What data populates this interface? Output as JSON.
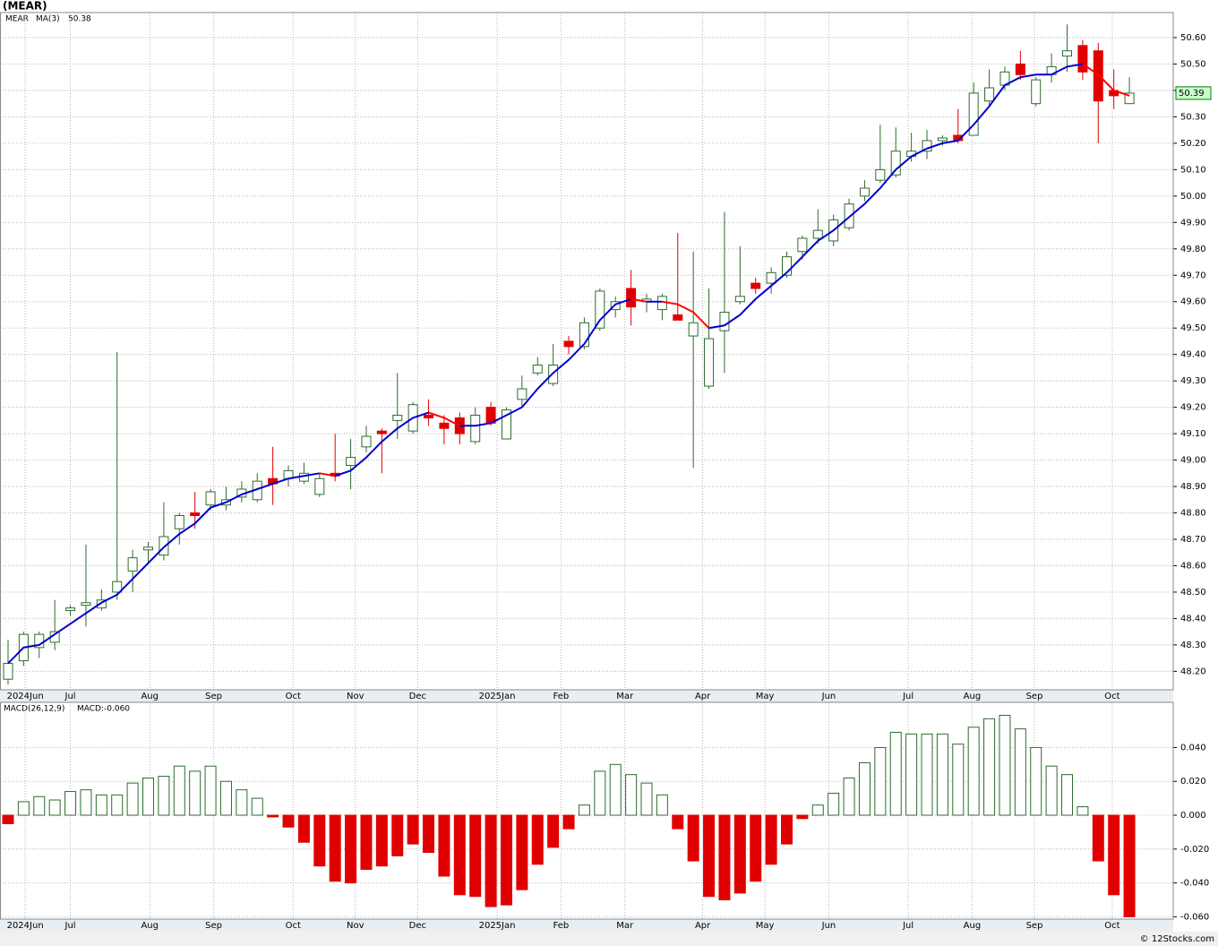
{
  "chart_data": [
    {
      "type": "candlestick",
      "title": "(MEAR)",
      "name": "MEAR",
      "name_color": "#008000",
      "categories": [
        null,
        null,
        null,
        null,
        null,
        null,
        null,
        null,
        null,
        null,
        null,
        null,
        null,
        null,
        null,
        null,
        null,
        null,
        null,
        null,
        null,
        null,
        null,
        null,
        null,
        null,
        null,
        null,
        null,
        null,
        null,
        null,
        null,
        null,
        null,
        null,
        null,
        null,
        null,
        null,
        null,
        null,
        null,
        null,
        null,
        null,
        null,
        null,
        null,
        null,
        null,
        null,
        null,
        null,
        null,
        null,
        null,
        null,
        null,
        null,
        null,
        null,
        null,
        null,
        null,
        null,
        null,
        null,
        null,
        null,
        null,
        null,
        null
      ],
      "open": [
        48.17,
        48.24,
        48.29,
        48.31,
        48.43,
        48.45,
        48.44,
        48.5,
        48.58,
        48.66,
        48.64,
        48.74,
        48.8,
        48.83,
        48.83,
        48.86,
        48.85,
        48.93,
        48.93,
        48.92,
        48.87,
        48.95,
        48.98,
        49.05,
        49.11,
        49.15,
        49.11,
        49.17,
        49.14,
        49.16,
        49.07,
        49.2,
        49.08,
        49.23,
        49.33,
        49.29,
        49.45,
        49.43,
        49.5,
        49.57,
        49.65,
        49.6,
        49.57,
        49.55,
        49.47,
        49.28,
        49.49,
        49.6,
        49.67,
        49.67,
        49.7,
        49.79,
        49.84,
        49.83,
        49.88,
        50.0,
        50.06,
        50.08,
        50.15,
        50.17,
        50.21,
        50.23,
        50.23,
        50.36,
        50.42,
        50.5,
        50.35,
        50.46,
        50.53,
        50.57,
        50.55,
        50.4,
        50.35
      ],
      "high": [
        48.32,
        48.35,
        48.35,
        48.47,
        48.45,
        48.68,
        48.51,
        49.41,
        48.66,
        48.69,
        48.84,
        48.8,
        48.88,
        48.89,
        48.9,
        48.92,
        48.95,
        49.05,
        48.98,
        48.99,
        48.95,
        49.1,
        49.08,
        49.13,
        49.12,
        49.33,
        49.22,
        49.23,
        49.17,
        49.18,
        49.2,
        49.22,
        49.2,
        49.32,
        49.39,
        49.44,
        49.47,
        49.54,
        49.65,
        49.62,
        49.72,
        49.63,
        49.63,
        49.86,
        49.79,
        49.65,
        49.94,
        49.81,
        49.69,
        49.73,
        49.79,
        49.85,
        49.95,
        49.93,
        49.99,
        50.06,
        50.27,
        50.26,
        50.24,
        50.25,
        50.23,
        50.33,
        50.43,
        50.48,
        50.49,
        50.55,
        50.45,
        50.54,
        50.65,
        50.59,
        50.58,
        50.48,
        50.45
      ],
      "low": [
        48.15,
        48.22,
        48.25,
        48.28,
        48.41,
        48.37,
        48.43,
        48.47,
        48.5,
        48.61,
        48.62,
        48.68,
        48.74,
        48.81,
        48.81,
        48.84,
        48.84,
        48.83,
        48.9,
        48.91,
        48.86,
        48.92,
        48.89,
        49.03,
        48.95,
        49.08,
        49.1,
        49.13,
        49.06,
        49.06,
        49.06,
        49.13,
        49.08,
        49.2,
        49.32,
        49.28,
        49.4,
        49.42,
        49.49,
        49.54,
        49.51,
        49.56,
        49.53,
        49.53,
        48.97,
        49.27,
        49.33,
        49.59,
        49.63,
        49.63,
        49.69,
        49.76,
        49.82,
        49.81,
        49.87,
        49.98,
        50.05,
        50.07,
        50.13,
        50.14,
        50.19,
        50.2,
        50.23,
        50.34,
        50.4,
        50.44,
        50.34,
        50.43,
        50.47,
        50.44,
        50.2,
        50.33,
        50.35
      ],
      "close": [
        48.23,
        48.34,
        48.34,
        48.35,
        48.44,
        48.46,
        48.47,
        48.54,
        48.63,
        48.67,
        48.71,
        48.79,
        48.79,
        48.88,
        48.85,
        48.89,
        48.92,
        48.91,
        48.96,
        48.95,
        48.93,
        48.94,
        49.01,
        49.09,
        49.1,
        49.17,
        49.21,
        49.16,
        49.12,
        49.1,
        49.17,
        49.14,
        49.19,
        49.27,
        49.36,
        49.36,
        49.43,
        49.52,
        49.64,
        49.6,
        49.58,
        49.61,
        49.62,
        49.53,
        49.52,
        49.46,
        49.56,
        49.62,
        49.65,
        49.71,
        49.77,
        49.84,
        49.87,
        49.91,
        49.97,
        50.03,
        50.1,
        50.17,
        50.17,
        50.21,
        50.22,
        50.21,
        50.39,
        50.41,
        50.47,
        50.46,
        50.44,
        50.49,
        50.55,
        50.47,
        50.36,
        50.38,
        50.39
      ],
      "last_close_label": "50.39",
      "up_color": "#2e6b2e",
      "down_color": "#e00000",
      "ma": {
        "name": "MA(3)",
        "last_label": "50.38",
        "color": "#0000cc",
        "down_color": "#ff0000",
        "values": [
          48.23,
          48.29,
          48.3,
          48.34,
          48.38,
          48.42,
          48.46,
          48.49,
          48.55,
          48.61,
          48.67,
          48.72,
          48.76,
          48.82,
          48.84,
          48.87,
          48.89,
          48.91,
          48.93,
          48.94,
          48.95,
          48.94,
          48.96,
          49.01,
          49.07,
          49.12,
          49.16,
          49.18,
          49.16,
          49.13,
          49.13,
          49.14,
          49.17,
          49.2,
          49.27,
          49.33,
          49.38,
          49.44,
          49.53,
          49.59,
          49.61,
          49.6,
          49.6,
          49.59,
          49.56,
          49.5,
          49.51,
          49.55,
          49.61,
          49.66,
          49.71,
          49.77,
          49.83,
          49.87,
          49.92,
          49.97,
          50.03,
          50.1,
          50.15,
          50.18,
          50.2,
          50.21,
          50.27,
          50.34,
          50.42,
          50.45,
          50.46,
          50.46,
          50.49,
          50.5,
          50.46,
          50.4,
          50.38
        ]
      },
      "ylim": [
        48.13,
        50.695
      ],
      "yticks": [
        {
          "value": 48.2,
          "label": "48.20"
        },
        {
          "value": 48.3,
          "label": "48.30"
        },
        {
          "value": 48.4,
          "label": "48.40"
        },
        {
          "value": 48.5,
          "label": "48.50"
        },
        {
          "value": 48.6,
          "label": "48.60"
        },
        {
          "value": 48.7,
          "label": "48.70"
        },
        {
          "value": 48.8,
          "label": "48.80"
        },
        {
          "value": 48.9,
          "label": "48.90"
        },
        {
          "value": 49.0,
          "label": "49.00"
        },
        {
          "value": 49.1,
          "label": "49.10"
        },
        {
          "value": 49.2,
          "label": "49.20"
        },
        {
          "value": 49.3,
          "label": "49.30"
        },
        {
          "value": 49.4,
          "label": "49.40"
        },
        {
          "value": 49.5,
          "label": "49.50"
        },
        {
          "value": 49.6,
          "label": "49.60"
        },
        {
          "value": 49.7,
          "label": "49.70"
        },
        {
          "value": 49.8,
          "label": "49.80"
        },
        {
          "value": 49.9,
          "label": "49.90"
        },
        {
          "value": 50.0,
          "label": "50.00"
        },
        {
          "value": 50.1,
          "label": "50.10"
        },
        {
          "value": 50.2,
          "label": "50.20"
        },
        {
          "value": 50.3,
          "label": "50.30"
        },
        {
          "value": 50.4,
          "label": "50.40"
        },
        {
          "value": 50.5,
          "label": "50.50"
        },
        {
          "value": 50.6,
          "label": "50.60"
        }
      ],
      "xticks": [
        {
          "value": 1.1,
          "label": "2024Jun"
        },
        {
          "value": 4.0,
          "label": "Jul"
        },
        {
          "value": 9.1,
          "label": "Aug"
        },
        {
          "value": 13.2,
          "label": "Sep"
        },
        {
          "value": 18.3,
          "label": "Oct"
        },
        {
          "value": 22.3,
          "label": "Nov"
        },
        {
          "value": 26.3,
          "label": "Dec"
        },
        {
          "value": 31.4,
          "label": "2025Jan"
        },
        {
          "value": 35.5,
          "label": "Feb"
        },
        {
          "value": 39.6,
          "label": "Mar"
        },
        {
          "value": 44.6,
          "label": "Apr"
        },
        {
          "value": 48.6,
          "label": "May"
        },
        {
          "value": 52.7,
          "label": "Jun"
        },
        {
          "value": 57.8,
          "label": "Jul"
        },
        {
          "value": 61.9,
          "label": "Aug"
        },
        {
          "value": 65.9,
          "label": "Sep"
        },
        {
          "value": 70.9,
          "label": "Oct"
        }
      ],
      "grid": true
    },
    {
      "type": "bar",
      "name": "MACD(26,12,9)",
      "value_label": "MACD:-0.060",
      "categories": [
        null,
        null,
        null,
        null,
        null,
        null,
        null,
        null,
        null,
        null,
        null,
        null,
        null,
        null,
        null,
        null,
        null,
        null,
        null,
        null,
        null,
        null,
        null,
        null,
        null,
        null,
        null,
        null,
        null,
        null,
        null,
        null,
        null,
        null,
        null,
        null,
        null,
        null,
        null,
        null,
        null,
        null,
        null,
        null,
        null,
        null,
        null,
        null,
        null,
        null,
        null,
        null,
        null,
        null,
        null,
        null,
        null,
        null,
        null,
        null,
        null,
        null,
        null,
        null,
        null,
        null,
        null,
        null,
        null,
        null,
        null,
        null,
        null
      ],
      "values": [
        -0.005,
        0.008,
        0.011,
        0.009,
        0.014,
        0.015,
        0.012,
        0.012,
        0.019,
        0.022,
        0.023,
        0.029,
        0.026,
        0.029,
        0.02,
        0.015,
        0.01,
        -0.001,
        -0.007,
        -0.016,
        -0.03,
        -0.039,
        -0.04,
        -0.032,
        -0.03,
        -0.024,
        -0.017,
        -0.022,
        -0.036,
        -0.047,
        -0.048,
        -0.054,
        -0.053,
        -0.044,
        -0.029,
        -0.019,
        -0.008,
        0.006,
        0.026,
        0.03,
        0.024,
        0.019,
        0.012,
        -0.008,
        -0.027,
        -0.048,
        -0.05,
        -0.046,
        -0.039,
        -0.029,
        -0.017,
        -0.002,
        0.006,
        0.013,
        0.022,
        0.031,
        0.04,
        0.049,
        0.048,
        0.048,
        0.048,
        0.042,
        0.052,
        0.057,
        0.059,
        0.051,
        0.04,
        0.029,
        0.024,
        0.005,
        -0.027,
        -0.047,
        -0.06
      ],
      "pos_color": "#2e6b2e",
      "neg_color": "#e00000",
      "ylim": [
        -0.0614,
        0.0667
      ],
      "yticks": [
        {
          "value": 0.04,
          "label": "0.040"
        },
        {
          "value": 0.02,
          "label": "0.020"
        },
        {
          "value": 0,
          "label": "0.000"
        },
        {
          "value": -0.02,
          "label": "-0.020"
        },
        {
          "value": -0.04,
          "label": "-0.040"
        },
        {
          "value": -0.06,
          "label": "-0.060"
        }
      ],
      "xticks": [
        {
          "value": 1.1,
          "label": "2024Jun"
        },
        {
          "value": 4.0,
          "label": "Jul"
        },
        {
          "value": 9.1,
          "label": "Aug"
        },
        {
          "value": 13.2,
          "label": "Sep"
        },
        {
          "value": 18.3,
          "label": "Oct"
        },
        {
          "value": 22.3,
          "label": "Nov"
        },
        {
          "value": 26.3,
          "label": "Dec"
        },
        {
          "value": 31.4,
          "label": "2025Jan"
        },
        {
          "value": 35.5,
          "label": "Feb"
        },
        {
          "value": 39.6,
          "label": "Mar"
        },
        {
          "value": 44.6,
          "label": "Apr"
        },
        {
          "value": 48.6,
          "label": "May"
        },
        {
          "value": 52.7,
          "label": "Jun"
        },
        {
          "value": 57.8,
          "label": "Jul"
        },
        {
          "value": 61.9,
          "label": "Aug"
        },
        {
          "value": 65.9,
          "label": "Sep"
        },
        {
          "value": 70.9,
          "label": "Oct"
        }
      ],
      "grid": true
    }
  ],
  "footer": "© 12Stocks.com"
}
